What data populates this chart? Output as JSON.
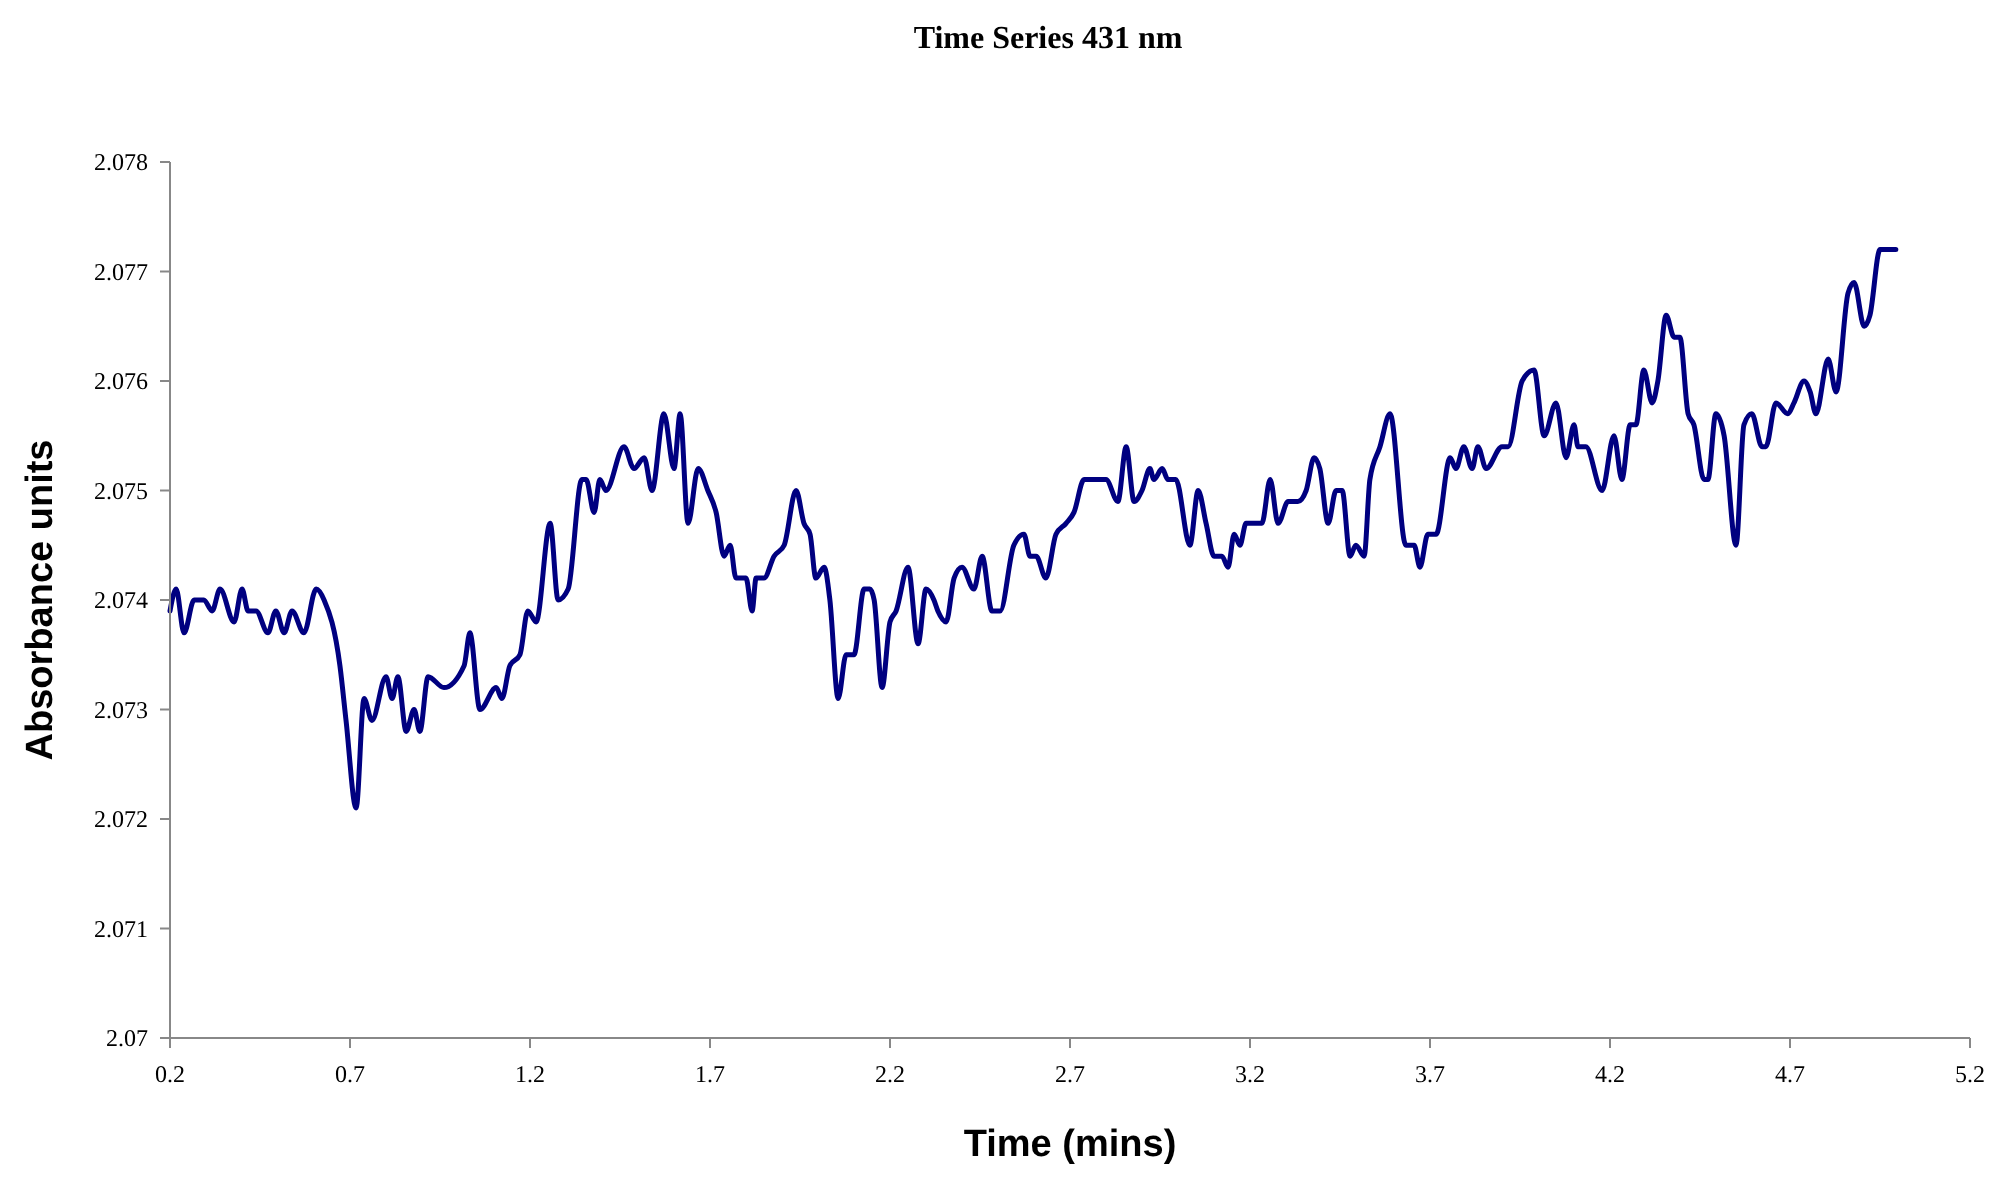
{
  "chart_data": {
    "type": "line",
    "title": "Time Series 431 nm",
    "xlabel": "Time (mins)",
    "ylabel": "Absorbance units",
    "xlim": [
      0.2,
      5.2
    ],
    "xticks": [
      0.2,
      0.7,
      1.2,
      1.7,
      2.2,
      2.7,
      3.2,
      3.7,
      4.2,
      4.7,
      5.2
    ],
    "ylim": [
      2.07,
      2.078
    ],
    "yticks": [
      2.07,
      2.071,
      2.072,
      2.073,
      2.074,
      2.075,
      2.076,
      2.077,
      2.078
    ],
    "grid": false,
    "marker": "none",
    "line_style": "solid",
    "series": [
      {
        "color": "#000080",
        "x": [
          0.2,
          0.217,
          0.239,
          0.267,
          0.294,
          0.317,
          0.339,
          0.378,
          0.4,
          0.417,
          0.439,
          0.472,
          0.494,
          0.517,
          0.539,
          0.572,
          0.606,
          0.628,
          0.672,
          0.689,
          0.717,
          0.739,
          0.761,
          0.8,
          0.817,
          0.833,
          0.856,
          0.878,
          0.894,
          0.917,
          0.961,
          1.017,
          1.033,
          1.061,
          1.106,
          1.122,
          1.144,
          1.172,
          1.194,
          1.217,
          1.256,
          1.278,
          1.306,
          1.344,
          1.356,
          1.378,
          1.394,
          1.411,
          1.461,
          1.489,
          1.517,
          1.539,
          1.572,
          1.6,
          1.617,
          1.639,
          1.667,
          1.694,
          1.717,
          1.739,
          1.756,
          1.772,
          1.8,
          1.817,
          1.828,
          1.85,
          1.878,
          1.906,
          1.939,
          1.961,
          1.978,
          1.994,
          2.017,
          2.033,
          2.056,
          2.078,
          2.1,
          2.128,
          2.144,
          2.156,
          2.178,
          2.2,
          2.217,
          2.25,
          2.278,
          2.3,
          2.322,
          2.333,
          2.356,
          2.378,
          2.4,
          2.433,
          2.456,
          2.483,
          2.506,
          2.544,
          2.572,
          2.589,
          2.606,
          2.633,
          2.661,
          2.689,
          2.711,
          2.739,
          2.756,
          2.783,
          2.8,
          2.833,
          2.856,
          2.878,
          2.9,
          2.922,
          2.933,
          2.956,
          2.972,
          2.994,
          3.033,
          3.056,
          3.078,
          3.1,
          3.122,
          3.139,
          3.156,
          3.172,
          3.189,
          3.211,
          3.233,
          3.256,
          3.278,
          3.306,
          3.333,
          3.356,
          3.378,
          3.394,
          3.417,
          3.439,
          3.456,
          3.478,
          3.494,
          3.517,
          3.533,
          3.561,
          3.589,
          3.633,
          3.656,
          3.672,
          3.694,
          3.717,
          3.756,
          3.772,
          3.794,
          3.817,
          3.833,
          3.856,
          3.9,
          3.917,
          3.956,
          3.989,
          4.017,
          4.05,
          4.078,
          4.1,
          4.111,
          4.133,
          4.178,
          4.211,
          4.233,
          4.256,
          4.272,
          4.294,
          4.317,
          4.333,
          4.356,
          4.378,
          4.394,
          4.417,
          4.433,
          4.461,
          4.472,
          4.494,
          4.517,
          4.55,
          4.572,
          4.594,
          4.622,
          4.633,
          4.661,
          4.694,
          4.711,
          4.739,
          4.756,
          4.772,
          4.806,
          4.828,
          4.861,
          4.878,
          4.906,
          4.922,
          4.95,
          4.967,
          4.994
        ],
        "values": [
          2.0739,
          2.0741,
          2.0737,
          2.074,
          2.074,
          2.0739,
          2.0741,
          2.0738,
          2.0741,
          2.0739,
          2.0739,
          2.0737,
          2.0739,
          2.0737,
          2.0739,
          2.0737,
          2.0741,
          2.074,
          2.0734,
          2.0729,
          2.0721,
          2.0731,
          2.0729,
          2.0733,
          2.0731,
          2.0733,
          2.0728,
          2.073,
          2.0728,
          2.0733,
          2.0732,
          2.0734,
          2.0737,
          2.073,
          2.0732,
          2.0731,
          2.0734,
          2.0735,
          2.0739,
          2.0738,
          2.0747,
          2.074,
          2.0741,
          2.0751,
          2.0751,
          2.0748,
          2.0751,
          2.075,
          2.0754,
          2.0752,
          2.0753,
          2.075,
          2.0757,
          2.0752,
          2.0757,
          2.0747,
          2.0752,
          2.075,
          2.0748,
          2.0744,
          2.0745,
          2.0742,
          2.0742,
          2.0739,
          2.0742,
          2.0742,
          2.0744,
          2.0745,
          2.075,
          2.0747,
          2.0746,
          2.0742,
          2.0743,
          2.074,
          2.0731,
          2.0735,
          2.0735,
          2.0741,
          2.0741,
          2.074,
          2.0732,
          2.0738,
          2.0739,
          2.0743,
          2.0736,
          2.0741,
          2.074,
          2.0739,
          2.0738,
          2.0742,
          2.0743,
          2.0741,
          2.0744,
          2.0739,
          2.0739,
          2.0745,
          2.0746,
          2.0744,
          2.0744,
          2.0742,
          2.0746,
          2.0747,
          2.0748,
          2.0751,
          2.0751,
          2.0751,
          2.0751,
          2.0749,
          2.0754,
          2.0749,
          2.075,
          2.0752,
          2.0751,
          2.0752,
          2.0751,
          2.0751,
          2.0745,
          2.075,
          2.0747,
          2.0744,
          2.0744,
          2.0743,
          2.0746,
          2.0745,
          2.0747,
          2.0747,
          2.0747,
          2.0751,
          2.0747,
          2.0749,
          2.0749,
          2.075,
          2.0753,
          2.0752,
          2.0747,
          2.075,
          2.075,
          2.0744,
          2.0745,
          2.0744,
          2.0751,
          2.0754,
          2.0757,
          2.0745,
          2.0745,
          2.0743,
          2.0746,
          2.0746,
          2.0753,
          2.0752,
          2.0754,
          2.0752,
          2.0754,
          2.0752,
          2.0754,
          2.0754,
          2.076,
          2.0761,
          2.0755,
          2.0758,
          2.0753,
          2.0756,
          2.0754,
          2.0754,
          2.075,
          2.0755,
          2.0751,
          2.0756,
          2.0756,
          2.0761,
          2.0758,
          2.076,
          2.0766,
          2.0764,
          2.0764,
          2.0757,
          2.0756,
          2.0751,
          2.0751,
          2.0757,
          2.0755,
          2.0745,
          2.0756,
          2.0757,
          2.0754,
          2.0754,
          2.0758,
          2.0757,
          2.0758,
          2.076,
          2.0759,
          2.0757,
          2.0762,
          2.0759,
          2.0768,
          2.0769,
          2.0765,
          2.0766,
          2.0772,
          2.0772,
          2.0772
        ]
      }
    ]
  }
}
